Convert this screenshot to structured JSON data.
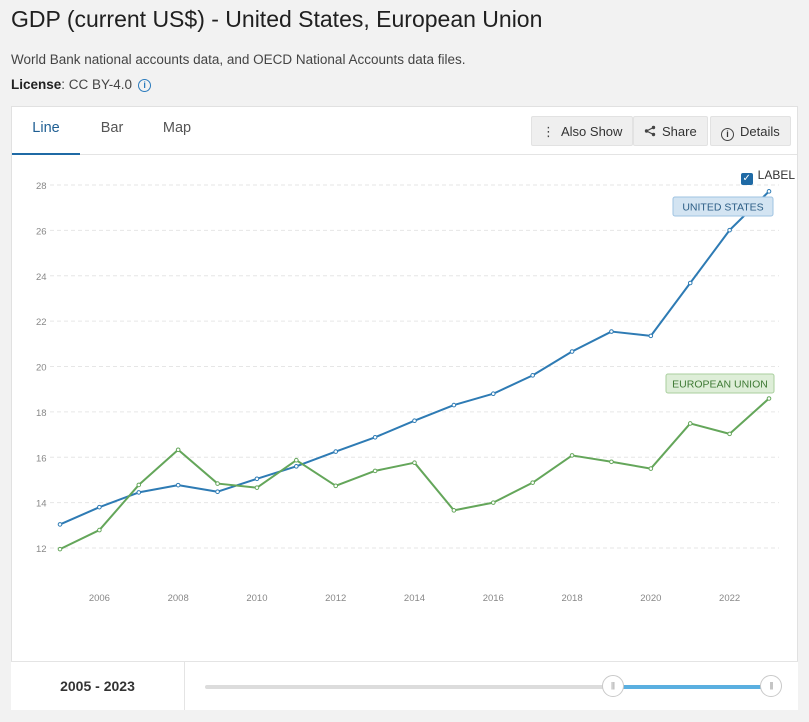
{
  "header": {
    "title": "GDP (current US$) - United States, European Union",
    "source": "World Bank national accounts data, and OECD National Accounts data files.",
    "license_label": "License",
    "license_value": ": CC BY-4.0"
  },
  "tabs": [
    {
      "label": "Line",
      "active": true
    },
    {
      "label": "Bar",
      "active": false
    },
    {
      "label": "Map",
      "active": false
    }
  ],
  "toolbar": {
    "also_show": "Also Show",
    "share": "Share",
    "details": "Details"
  },
  "label_toggle": {
    "text": "LABEL",
    "checked": true
  },
  "range": {
    "start": "2005",
    "sep": " - ",
    "end": "2023",
    "start_fraction": 0.72,
    "end_fraction": 1.0
  },
  "colors": {
    "united_states": "#2e7bb4",
    "european_union": "#64a65a"
  },
  "chart_data": {
    "type": "line",
    "x": [
      2005,
      2006,
      2007,
      2008,
      2009,
      2010,
      2011,
      2012,
      2013,
      2014,
      2015,
      2016,
      2017,
      2018,
      2019,
      2020,
      2021,
      2022,
      2023
    ],
    "xticks": [
      "2006",
      "2008",
      "2010",
      "2012",
      "2014",
      "2016",
      "2018",
      "2020",
      "2022"
    ],
    "yticks": [
      "12",
      "14",
      "16",
      "18",
      "20",
      "22",
      "24",
      "26",
      "28"
    ],
    "ylim": [
      11.5,
      28.5
    ],
    "xlim": [
      2005,
      2023
    ],
    "grid": true,
    "series": [
      {
        "name": "UNITED STATES",
        "color": "#2e7bb4",
        "values": [
          13.04,
          13.8,
          14.45,
          14.77,
          14.48,
          15.05,
          15.6,
          16.25,
          16.88,
          17.61,
          18.3,
          18.8,
          19.61,
          20.66,
          21.54,
          21.35,
          23.68,
          26.01,
          27.72
        ]
      },
      {
        "name": "EUROPEAN UNION",
        "color": "#64a65a",
        "values": [
          11.95,
          12.79,
          14.78,
          16.33,
          14.84,
          14.66,
          15.87,
          14.74,
          15.4,
          15.76,
          13.66,
          14.0,
          14.88,
          16.08,
          15.8,
          15.5,
          17.49,
          17.03,
          18.59
        ]
      }
    ]
  }
}
